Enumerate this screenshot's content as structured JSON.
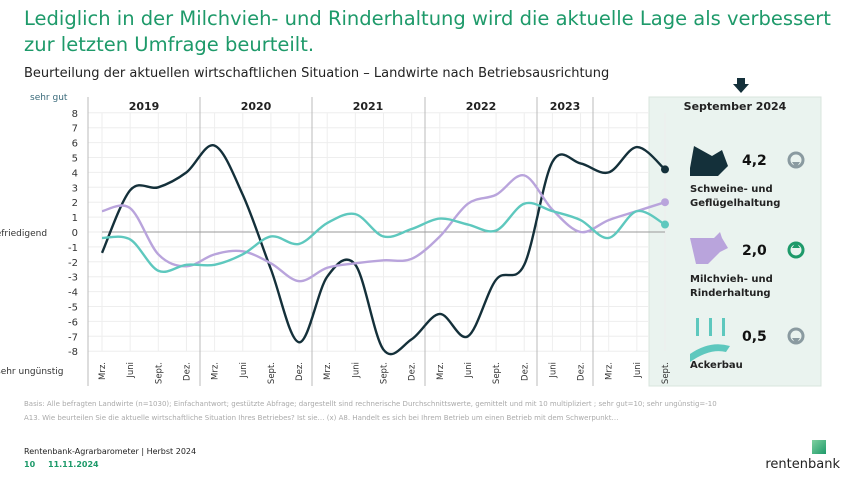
{
  "header": {
    "title": "Lediglich in der Milchvieh- und Rinderhaltung wird die aktuelle Lage als verbessert zur letzten Umfrage beurteilt.",
    "subtitle": "Beurteilung der aktuellen wirtschaftlichen Situation – Landwirte nach Betriebsausrichtung"
  },
  "chart_data": {
    "type": "line",
    "title": "Beurteilung der aktuellen wirtschaftlichen Situation – Landwirte nach Betriebsausrichtung",
    "years": [
      "2019",
      "2020",
      "2021",
      "2022",
      "2023",
      "September 2024"
    ],
    "x": [
      "Mrz.",
      "Juni",
      "Sept.",
      "Dez.",
      "Mrz.",
      "Juni",
      "Sept.",
      "Dez.",
      "Mrz.",
      "Juni",
      "Sept.",
      "Dez.",
      "Mrz.",
      "Juni",
      "Sept.",
      "Dez.",
      "Juni",
      "Dez.",
      "Mrz.",
      "Juni",
      "Sept."
    ],
    "ylim": [
      -8,
      8
    ],
    "yticks": [
      8,
      7,
      6,
      5,
      4,
      3,
      2,
      1,
      0,
      -1,
      -2,
      -3,
      -4,
      -5,
      -6,
      -7,
      -8
    ],
    "ylabels": {
      "top": "sehr gut",
      "mid": "befriedigend",
      "bottom": "sehr ungünstig"
    },
    "grid": true,
    "series": [
      {
        "name": "Schweine- und Geflügelhaltung",
        "color": "#14303a",
        "values": [
          -1.4,
          2.8,
          3.0,
          4.0,
          5.8,
          2.5,
          -2.5,
          -7.4,
          -3.0,
          -2.2,
          -7.9,
          -7.2,
          -5.5,
          -7.0,
          -3.2,
          -2.2,
          4.7,
          4.6,
          4.0,
          5.7,
          4.2
        ]
      },
      {
        "name": "Milchvieh- und Rinderhaltung",
        "color": "#b9a4dc",
        "values": [
          1.4,
          1.6,
          -1.5,
          -2.3,
          -1.5,
          -1.3,
          -2.1,
          -3.3,
          -2.4,
          -2.1,
          -1.9,
          -1.8,
          -0.3,
          1.9,
          2.5,
          3.8,
          1.5,
          0.0,
          0.8,
          1.4,
          2.0
        ]
      },
      {
        "name": "Ackerbau",
        "color": "#5ec8be",
        "values": [
          -0.4,
          -0.5,
          -2.6,
          -2.2,
          -2.2,
          -1.5,
          -0.3,
          -0.8,
          0.6,
          1.2,
          -0.3,
          0.2,
          0.9,
          0.5,
          0.1,
          1.9,
          1.4,
          0.8,
          -0.4,
          1.4,
          0.5
        ]
      }
    ]
  },
  "panel": {
    "title": "September 2024",
    "items": [
      {
        "label1": "Schweine- und",
        "label2": "Geflügelhaltung",
        "value": "4,2",
        "trend": "down",
        "icon": "pig-chicken-icon"
      },
      {
        "label1": "Milchvieh- und",
        "label2": "Rinderhaltung",
        "value": "2,0",
        "trend": "up",
        "icon": "cow-icon"
      },
      {
        "label1": "Ackerbau",
        "label2": "",
        "value": "0,5",
        "trend": "down",
        "icon": "wheat-field-icon"
      }
    ]
  },
  "footer": {
    "basis": "Basis: Alle befragten Landwirte (n=1030); Einfachantwort; gestützte Abfrage; dargestellt sind rechnerische Durchschnittswerte, gemittelt und mit 10 multipliziert ; sehr gut=10; sehr ungünstig=-10",
    "question": "A13. Wie beurteilen Sie die aktuelle wirtschaftliche Situation Ihres Betriebes? Ist sie… (x) A8. Handelt es sich bei Ihrem Betrieb um einen Betrieb mit dem Schwerpunkt…",
    "source": "Rentenbank-Agrarbarometer | Herbst 2024",
    "page": "10",
    "date": "11.11.2024",
    "logo": "rentenbank"
  },
  "colors": {
    "accent": "#1e9a6a",
    "panel_bg": "#eaf3ef"
  }
}
